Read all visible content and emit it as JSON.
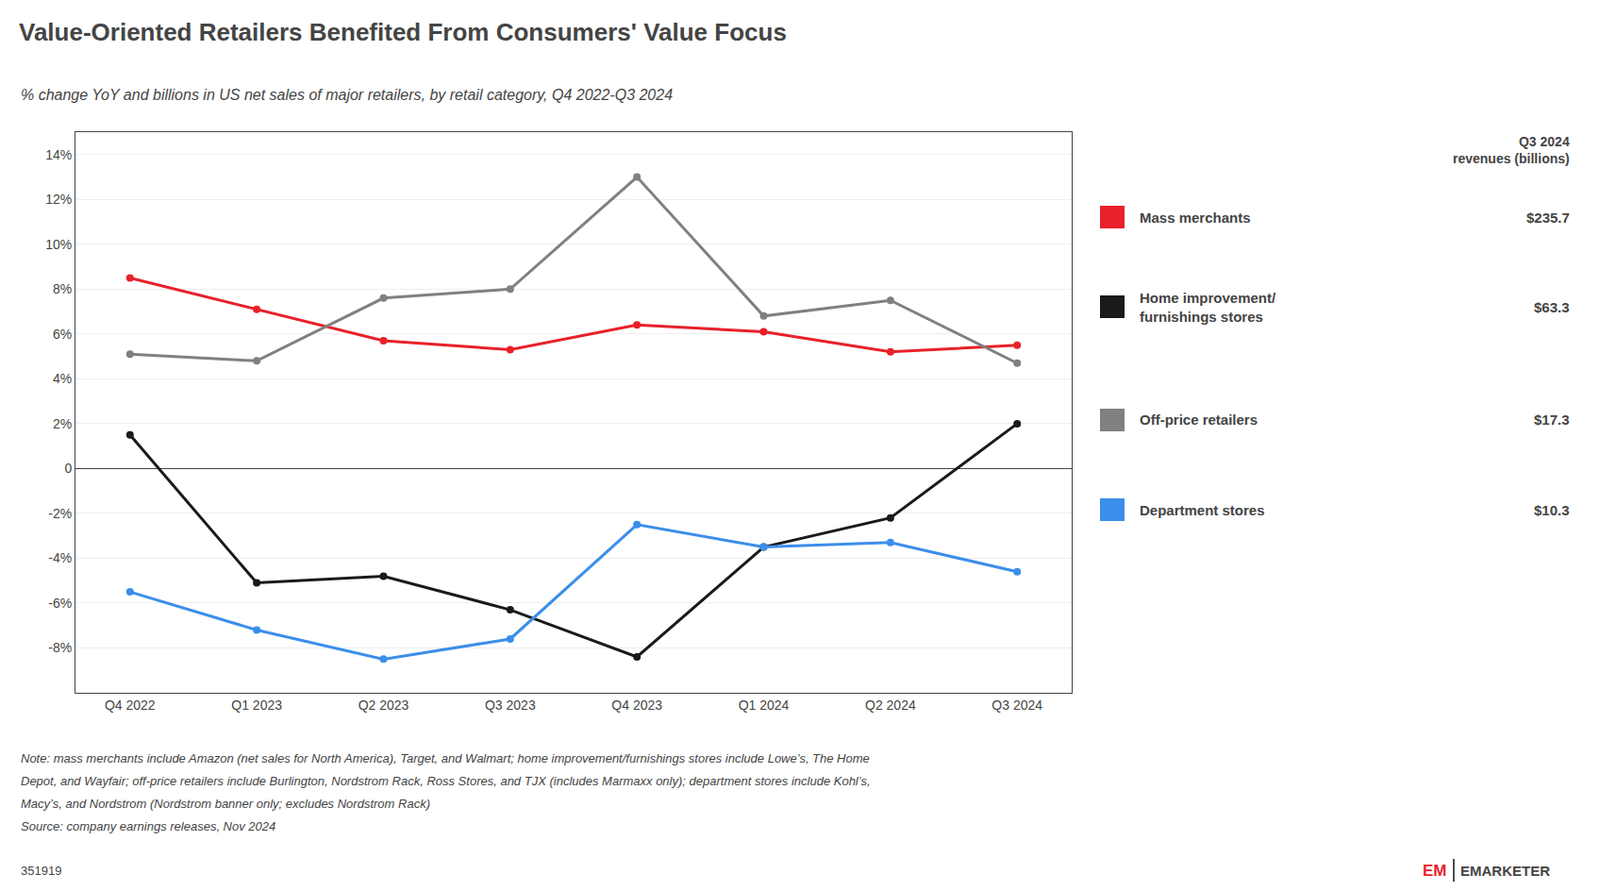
{
  "chart_data": {
    "type": "line",
    "title": "Value-Oriented Retailers Benefited From Consumers' Value Focus",
    "subtitle": "% change YoY and billions in US net sales of major retailers, by retail category, Q4 2022-Q3 2024",
    "categories": [
      "Q4 2022",
      "Q1 2023",
      "Q2 2023",
      "Q3 2023",
      "Q4 2023",
      "Q1 2024",
      "Q2 2024",
      "Q3 2024"
    ],
    "series": [
      {
        "name": "Mass merchants",
        "color": "#e8212a",
        "revenue": "$235.7",
        "values": [
          8.5,
          7.1,
          5.7,
          5.3,
          6.4,
          6.1,
          5.2,
          5.5
        ]
      },
      {
        "name": "Home improvement/\nfurnishings stores",
        "color": "#1a1a1a",
        "revenue": "$63.3",
        "values": [
          1.5,
          -5.1,
          -4.8,
          -6.3,
          -8.4,
          -3.5,
          -2.2,
          2.0
        ]
      },
      {
        "name": "Off-price retailers",
        "color": "#808080",
        "revenue": "$17.3",
        "values": [
          5.1,
          4.8,
          7.6,
          8.0,
          13.0,
          6.8,
          7.5,
          4.7
        ]
      },
      {
        "name": "Department stores",
        "color": "#3b8eea",
        "revenue": "$10.3",
        "values": [
          -5.5,
          -7.2,
          -8.5,
          -7.6,
          -2.5,
          -3.5,
          -3.3,
          -4.6
        ]
      }
    ],
    "legend_header": "Q3 2024\nrevenues (billions)",
    "legend": "right",
    "ylim": [
      -10,
      15
    ],
    "yticks": [
      {
        "value": -8,
        "label": "-8%"
      },
      {
        "value": -6,
        "label": "-6%"
      },
      {
        "value": -4,
        "label": "-4%"
      },
      {
        "value": -2,
        "label": "-2%"
      },
      0,
      {
        "value": 2,
        "label": "2%"
      },
      {
        "value": 4,
        "label": "4%"
      },
      {
        "value": 6,
        "label": "6%"
      },
      {
        "value": 8,
        "label": "8%"
      },
      {
        "value": 10,
        "label": "10%"
      },
      {
        "value": 12,
        "label": "12%"
      },
      {
        "value": 14,
        "label": "14%"
      }
    ],
    "grid": true,
    "marker": "circle",
    "notes": [
      "Note: mass merchants include Amazon (net sales for North America), Target, and Walmart; home improvement/furnishings stores include Lowe’s, The Home",
      "Depot, and Wayfair; off-price retailers include Burlington, Nordstrom Rack, Ross Stores, and TJX (includes Marmaxx only); department stores include Kohl’s,",
      "Macy’s, and Nordstrom (Nordstrom banner only; excludes Nordstrom Rack)",
      "Source: company earnings releases, Nov 2024"
    ],
    "footer": "351919",
    "brand": [
      "EM",
      "EMARKETER"
    ]
  }
}
